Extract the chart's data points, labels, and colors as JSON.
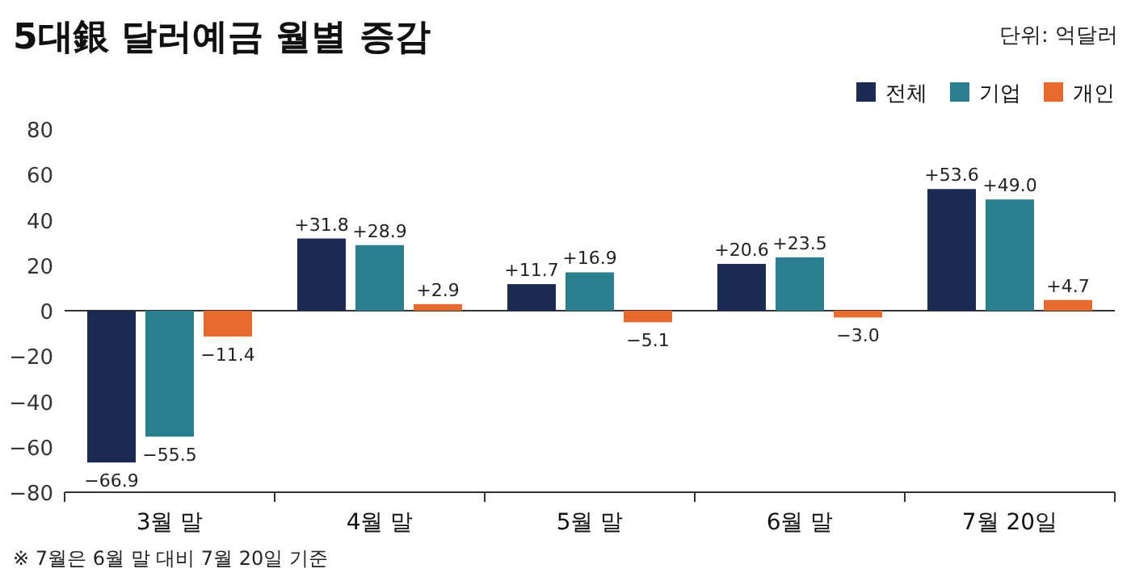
{
  "chart_data": {
    "type": "bar",
    "title": "5대銀 달러예금 월별 증감",
    "subtitle": "단위: 억달러",
    "categories": [
      "3월 말",
      "4월 말",
      "5월 말",
      "6월 말",
      "7월 20일"
    ],
    "series": [
      {
        "name": "전체",
        "color": "#1b2a52",
        "values": [
          -66.9,
          31.8,
          11.7,
          20.6,
          53.6
        ],
        "value_labels": [
          "−66.9",
          "+31.8",
          "+11.7",
          "+20.6",
          "+53.6"
        ]
      },
      {
        "name": "기업",
        "color": "#2a7f8f",
        "values": [
          -55.5,
          28.9,
          16.9,
          23.5,
          49.0
        ],
        "value_labels": [
          "−55.5",
          "+28.9",
          "+16.9",
          "+23.5",
          "+49.0"
        ]
      },
      {
        "name": "개인",
        "color": "#e8692e",
        "values": [
          -11.4,
          2.9,
          -5.1,
          -3.0,
          4.7
        ],
        "value_labels": [
          "−11.4",
          "+2.9",
          "−5.1",
          "−3.0",
          "+4.7"
        ]
      }
    ],
    "ylim": [
      -80,
      80
    ],
    "yticks": [
      {
        "value": -80,
        "label": "−80"
      },
      {
        "value": -60,
        "label": "−60"
      },
      {
        "value": -40,
        "label": "−40"
      },
      {
        "value": -20,
        "label": "−20"
      },
      0,
      20,
      40,
      60,
      80
    ],
    "legend": "top right",
    "ref_lines": [
      {
        "axis": "y",
        "value": 0
      }
    ],
    "annotations": [
      "※ 7월은 6월 말 대비 7월 20일 기준"
    ]
  }
}
